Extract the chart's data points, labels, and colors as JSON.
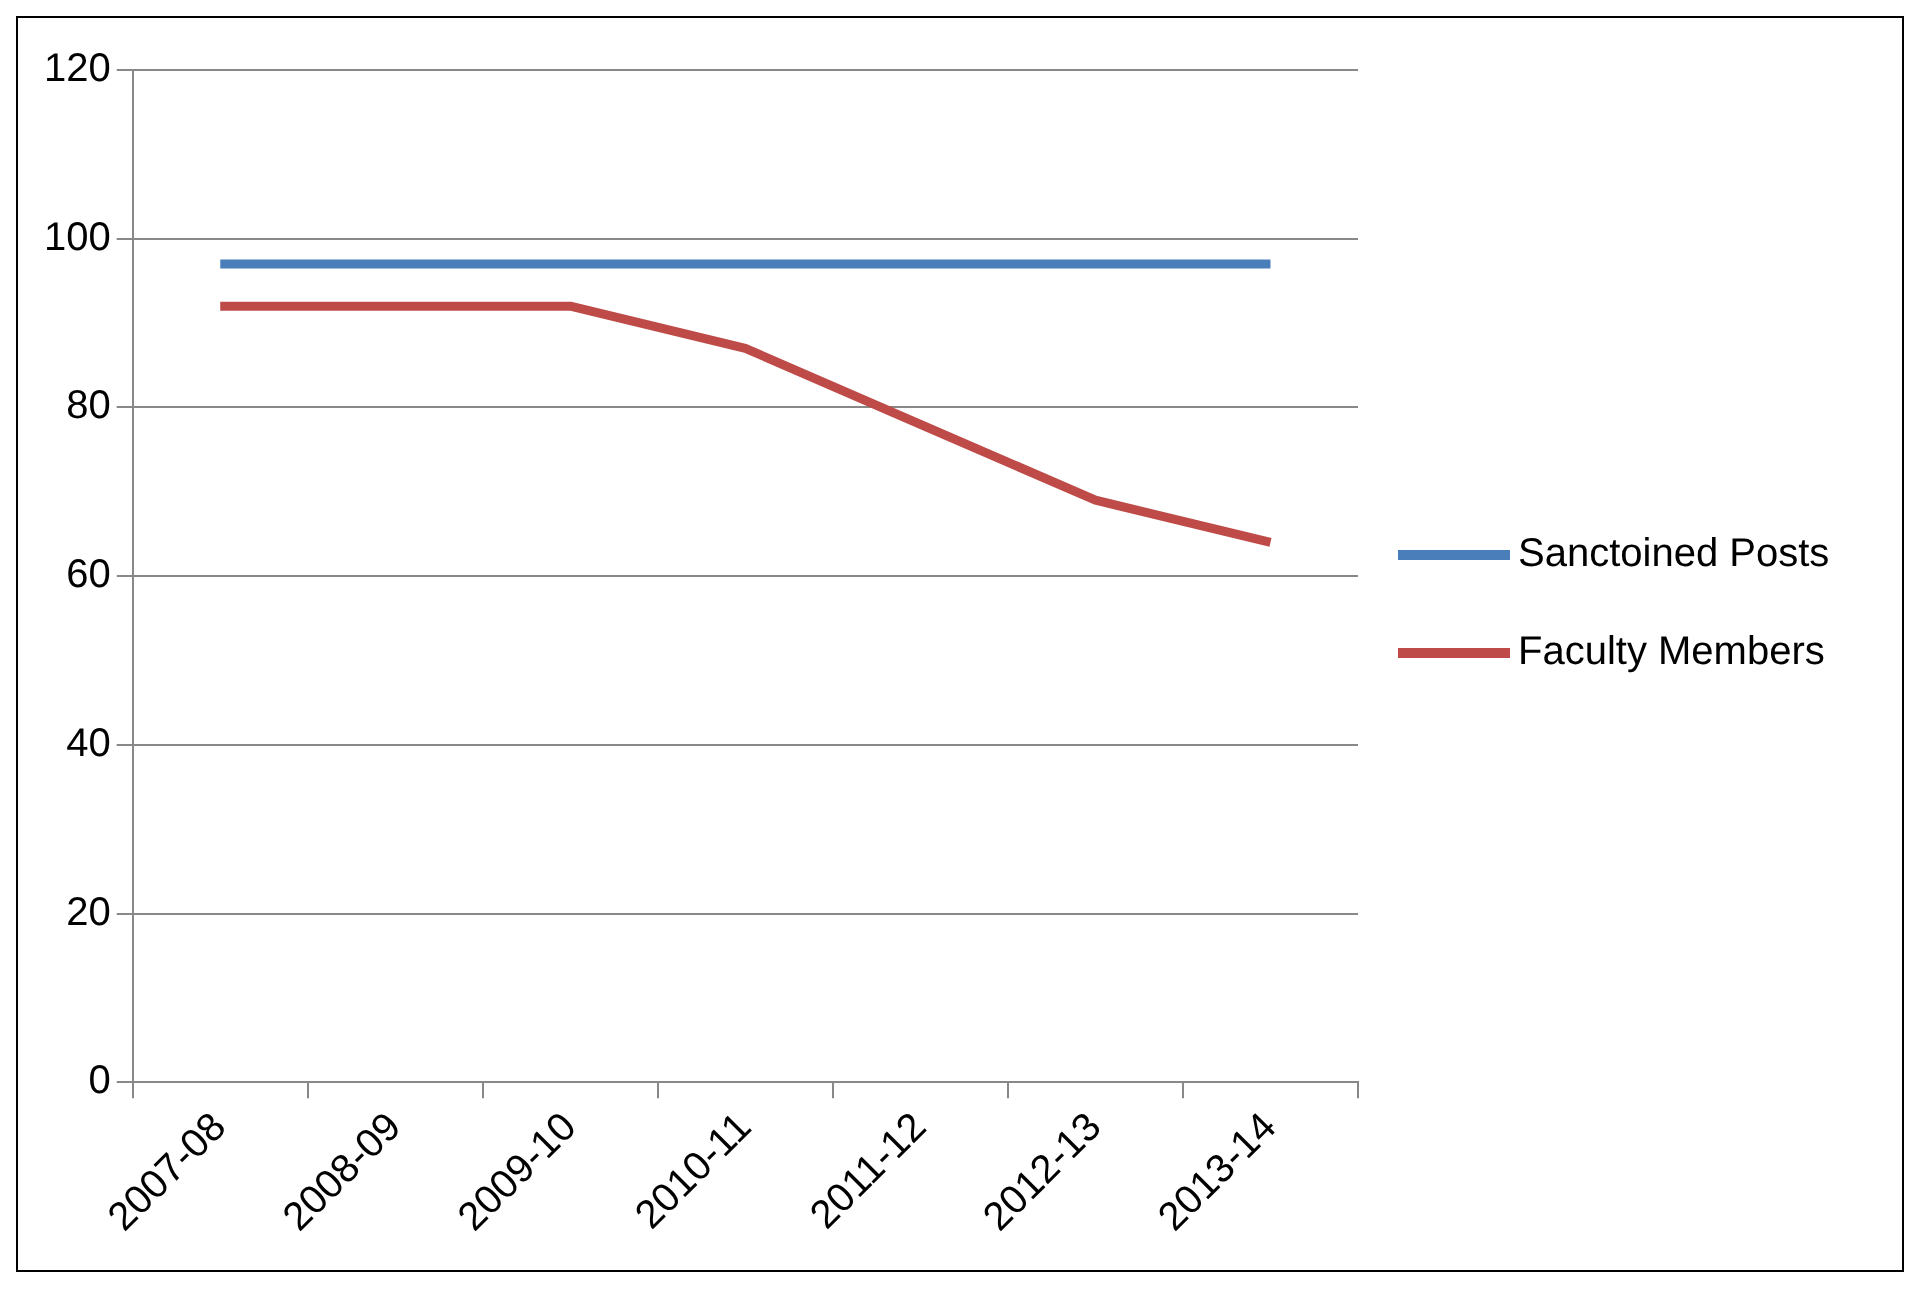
{
  "chart_data": {
    "type": "line",
    "categories": [
      "2007-08",
      "2008-09",
      "2009-10",
      "2010-11",
      "2011-12",
      "2012-13",
      "2013-14"
    ],
    "series": [
      {
        "name": "Sanctoined Posts",
        "color": "#4a7ebb",
        "values": [
          97,
          97,
          97,
          97,
          97,
          97,
          97
        ]
      },
      {
        "name": "Faculty Members",
        "color": "#be4b48",
        "values": [
          92,
          92,
          92,
          87,
          78,
          69,
          64
        ]
      }
    ],
    "ylim": [
      0,
      120
    ],
    "yticks": [
      0,
      20,
      40,
      60,
      80,
      100,
      120
    ],
    "grid": "y",
    "legend": "right",
    "marker": "none",
    "line_style": "solid"
  }
}
